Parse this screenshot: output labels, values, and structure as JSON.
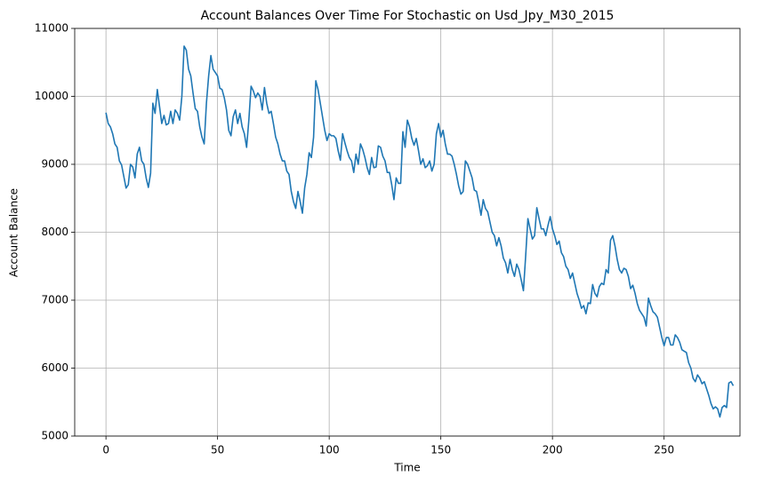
{
  "chart_data": {
    "type": "line",
    "title": "Account Balances Over Time For Stochastic on Usd_Jpy_M30_2015",
    "xlabel": "Time",
    "ylabel": "Account Balance",
    "color": "#1f77b4",
    "grid": true,
    "xlim": [
      -14,
      284
    ],
    "ylim": [
      5000,
      11000
    ],
    "xticks": [
      0,
      50,
      100,
      150,
      200,
      250
    ],
    "yticks": [
      5000,
      6000,
      7000,
      8000,
      9000,
      10000,
      11000
    ],
    "x": [
      0,
      1,
      2,
      3,
      4,
      5,
      6,
      7,
      8,
      9,
      10,
      11,
      12,
      13,
      14,
      15,
      16,
      17,
      18,
      19,
      20,
      21,
      22,
      23,
      24,
      25,
      26,
      27,
      28,
      29,
      30,
      31,
      32,
      33,
      34,
      35,
      36,
      37,
      38,
      39,
      40,
      41,
      42,
      43,
      44,
      45,
      46,
      47,
      48,
      49,
      50,
      51,
      52,
      53,
      54,
      55,
      56,
      57,
      58,
      59,
      60,
      61,
      62,
      63,
      64,
      65,
      66,
      67,
      68,
      69,
      70,
      71,
      72,
      73,
      74,
      75,
      76,
      77,
      78,
      79,
      80,
      81,
      82,
      83,
      84,
      85,
      86,
      87,
      88,
      89,
      90,
      91,
      92,
      93,
      94,
      95,
      96,
      97,
      98,
      99,
      100,
      101,
      102,
      103,
      104,
      105,
      106,
      107,
      108,
      109,
      110,
      111,
      112,
      113,
      114,
      115,
      116,
      117,
      118,
      119,
      120,
      121,
      122,
      123,
      124,
      125,
      126,
      127,
      128,
      129,
      130,
      131,
      132,
      133,
      134,
      135,
      136,
      137,
      138,
      139,
      140,
      141,
      142,
      143,
      144,
      145,
      146,
      147,
      148,
      149,
      150,
      151,
      152,
      153,
      154,
      155,
      156,
      157,
      158,
      159,
      160,
      161,
      162,
      163,
      164,
      165,
      166,
      167,
      168,
      169,
      170,
      171,
      172,
      173,
      174,
      175,
      176,
      177,
      178,
      179,
      180,
      181,
      182,
      183,
      184,
      185,
      186,
      187,
      188,
      189,
      190,
      191,
      192,
      193,
      194,
      195,
      196,
      197,
      198,
      199,
      200,
      201,
      202,
      203,
      204,
      205,
      206,
      207,
      208,
      209,
      210,
      211,
      212,
      213,
      214,
      215,
      216,
      217,
      218,
      219,
      220,
      221,
      222,
      223,
      224,
      225,
      226,
      227,
      228,
      229,
      230,
      231,
      232,
      233,
      234,
      235,
      236,
      237,
      238,
      239,
      240,
      241,
      242,
      243,
      244,
      245,
      246,
      247,
      248,
      249,
      250,
      251,
      252,
      253,
      254,
      255,
      256,
      257,
      258,
      259,
      260,
      261,
      262,
      263,
      264,
      265,
      266,
      267,
      268,
      269,
      270,
      271,
      272,
      273,
      274,
      275,
      276,
      277,
      278,
      279,
      280,
      281
    ],
    "values": [
      9760,
      9600,
      9550,
      9450,
      9300,
      9250,
      9050,
      8990,
      8820,
      8650,
      8700,
      9000,
      8960,
      8800,
      9150,
      9250,
      9050,
      9000,
      8800,
      8660,
      8870,
      9900,
      9750,
      10100,
      9850,
      9600,
      9720,
      9580,
      9600,
      9780,
      9600,
      9800,
      9750,
      9650,
      10000,
      10740,
      10680,
      10400,
      10300,
      10050,
      9820,
      9780,
      9550,
      9400,
      9300,
      9900,
      10300,
      10600,
      10400,
      10350,
      10300,
      10120,
      10100,
      9980,
      9800,
      9500,
      9420,
      9700,
      9800,
      9600,
      9750,
      9550,
      9450,
      9250,
      9650,
      10150,
      10080,
      9980,
      10050,
      10000,
      9800,
      10130,
      9900,
      9750,
      9780,
      9600,
      9400,
      9300,
      9150,
      9050,
      9050,
      8900,
      8850,
      8600,
      8450,
      8350,
      8600,
      8450,
      8280,
      8650,
      8850,
      9170,
      9100,
      9400,
      10230,
      10100,
      9900,
      9700,
      9500,
      9350,
      9450,
      9420,
      9420,
      9380,
      9200,
      9060,
      9450,
      9320,
      9200,
      9100,
      9050,
      8880,
      9150,
      9000,
      9300,
      9220,
      9100,
      8950,
      8850,
      9100,
      8950,
      8960,
      9270,
      9250,
      9120,
      9050,
      8880,
      8880,
      8700,
      8480,
      8800,
      8720,
      8720,
      9480,
      9250,
      9650,
      9550,
      9380,
      9280,
      9380,
      9200,
      9000,
      9080,
      8950,
      8980,
      9050,
      8900,
      9000,
      9450,
      9600,
      9400,
      9500,
      9300,
      9150,
      9150,
      9120,
      9000,
      8850,
      8680,
      8560,
      8600,
      9050,
      9000,
      8900,
      8800,
      8620,
      8600,
      8440,
      8250,
      8480,
      8350,
      8300,
      8150,
      8000,
      7950,
      7800,
      7920,
      7800,
      7620,
      7550,
      7400,
      7600,
      7450,
      7350,
      7530,
      7450,
      7300,
      7140,
      7650,
      8200,
      8050,
      7900,
      7950,
      8360,
      8200,
      8050,
      8050,
      7950,
      8100,
      8230,
      8050,
      7950,
      7820,
      7870,
      7700,
      7640,
      7500,
      7450,
      7320,
      7400,
      7250,
      7100,
      7000,
      6880,
      6920,
      6800,
      6960,
      6950,
      7230,
      7100,
      7050,
      7200,
      7250,
      7230,
      7450,
      7400,
      7880,
      7950,
      7800,
      7600,
      7450,
      7400,
      7470,
      7450,
      7350,
      7170,
      7220,
      7100,
      6950,
      6850,
      6800,
      6750,
      6620,
      7030,
      6920,
      6830,
      6800,
      6750,
      6600,
      6450,
      6330,
      6450,
      6450,
      6340,
      6340,
      6490,
      6450,
      6380,
      6270,
      6250,
      6230,
      6080,
      6000,
      5850,
      5800,
      5900,
      5850,
      5770,
      5800,
      5700,
      5600,
      5480,
      5400,
      5430,
      5400,
      5280,
      5420,
      5450,
      5420,
      5780,
      5800,
      5740
    ]
  }
}
